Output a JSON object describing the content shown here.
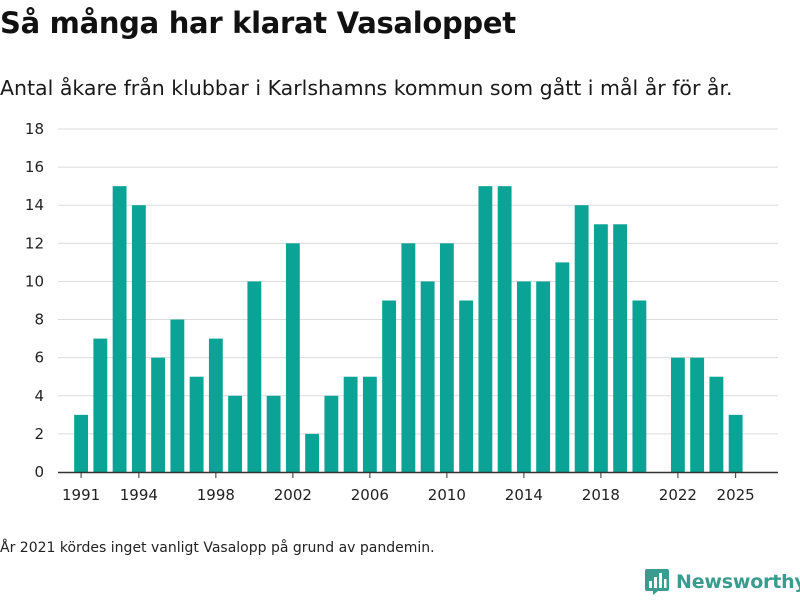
{
  "title": "Så många har klarat Vasaloppet",
  "subtitle": "Antal åkare från klubbar i Karlshamns kommun som gått i mål år för år.",
  "note": "År 2021 kördes inget vanligt Vasalopp på grund av pandemin.",
  "brand": {
    "name": "Newsworthy",
    "icon": "bar-chart-logo-icon",
    "color": "#3a9c8e"
  },
  "colors": {
    "bar": "#0aa396",
    "grid": "#dcdcdc",
    "axis": "#333333"
  },
  "chart_data": {
    "type": "bar",
    "title": "Så många har klarat Vasaloppet",
    "xlabel": "",
    "ylabel": "",
    "ylim": [
      0,
      18
    ],
    "xlim": [
      1989.8,
      2027.2
    ],
    "yticks": [
      0,
      2,
      4,
      6,
      8,
      10,
      12,
      14,
      16,
      18
    ],
    "xticks": [
      1991,
      1994,
      1998,
      2002,
      2006,
      2010,
      2014,
      2018,
      2022,
      2025
    ],
    "grid": true,
    "x": [
      1991,
      1992,
      1993,
      1994,
      1995,
      1996,
      1997,
      1998,
      1999,
      2000,
      2001,
      2002,
      2003,
      2004,
      2005,
      2006,
      2007,
      2008,
      2009,
      2010,
      2011,
      2012,
      2013,
      2014,
      2015,
      2016,
      2017,
      2018,
      2019,
      2020,
      2022,
      2023,
      2024,
      2025
    ],
    "values": [
      3,
      7,
      15,
      14,
      6,
      8,
      5,
      7,
      4,
      10,
      4,
      12,
      2,
      4,
      5,
      5,
      9,
      12,
      10,
      12,
      9,
      15,
      15,
      10,
      10,
      11,
      14,
      13,
      13,
      9,
      6,
      6,
      5,
      3
    ]
  }
}
